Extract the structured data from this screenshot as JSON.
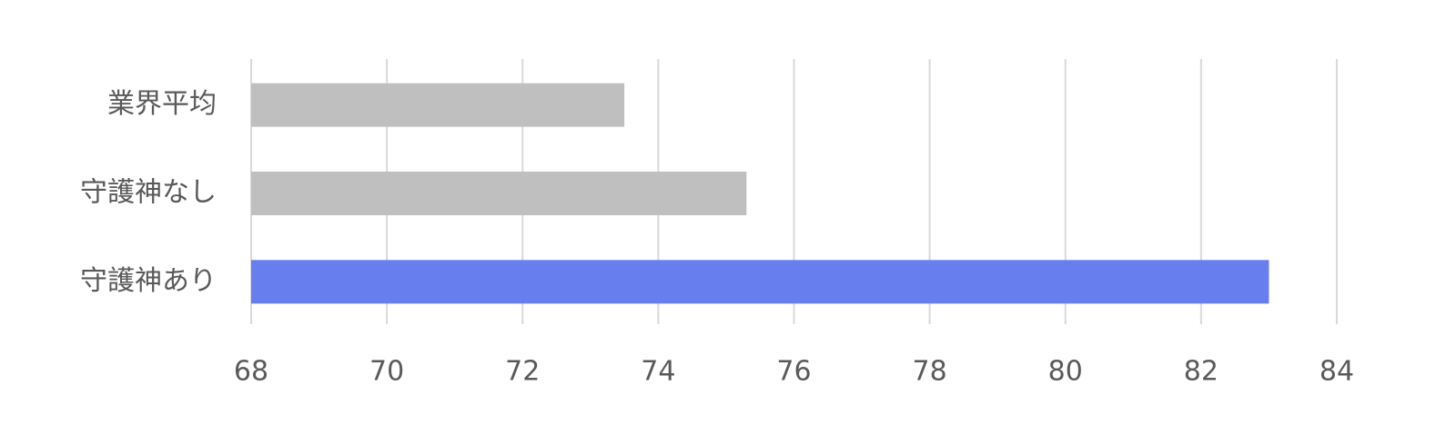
{
  "chart_data": {
    "type": "barh",
    "categories": [
      "業界平均",
      "守護神なし",
      "守護神あり"
    ],
    "values": [
      73.5,
      75.3,
      83.0
    ],
    "colors": [
      "#bfbfbf",
      "#bfbfbf",
      "#667eee"
    ],
    "xlim": [
      68,
      84
    ],
    "xticks": [
      68,
      70,
      72,
      74,
      76,
      78,
      80,
      82,
      84
    ],
    "grid": true
  }
}
